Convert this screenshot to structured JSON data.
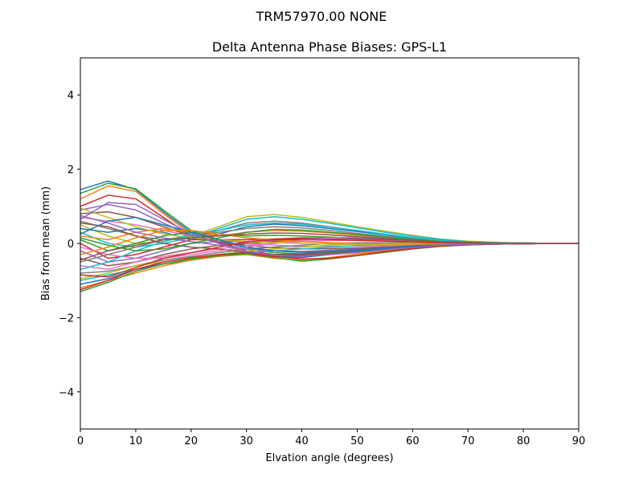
{
  "figure": {
    "suptitle": "TRM57970.00      NONE"
  },
  "chart_data": {
    "type": "line",
    "title": "Delta Antenna Phase Biases: GPS-L1",
    "xlabel": "Elvation angle (degrees)",
    "ylabel": "Bias from mean (mm)",
    "xlim": [
      0,
      90
    ],
    "ylim": [
      -5,
      5
    ],
    "xticks": [
      0,
      10,
      20,
      30,
      40,
      50,
      60,
      70,
      80,
      90
    ],
    "yticks": [
      -4,
      -2,
      0,
      2,
      4
    ],
    "ytick_labels": [
      "−4",
      "−2",
      "0",
      "2",
      "4"
    ],
    "grid": false,
    "legend": "none",
    "colors": [
      "#1f77b4",
      "#ff7f0e",
      "#2ca02c",
      "#d62728",
      "#9467bd",
      "#8c564b",
      "#e377c2",
      "#7f7f7f",
      "#bcbd22",
      "#17becf"
    ],
    "x": [
      0,
      5,
      10,
      15,
      20,
      25,
      30,
      35,
      40,
      45,
      50,
      55,
      60,
      65,
      70,
      75,
      80,
      85,
      90
    ],
    "series": [
      {
        "values": [
          1.45,
          1.68,
          1.45,
          0.85,
          0.3,
          0.05,
          -0.2,
          -0.3,
          -0.3,
          -0.25,
          -0.2,
          -0.15,
          -0.1,
          -0.05,
          -0.03,
          -0.02,
          -0.01,
          0.0,
          0.0
        ]
      },
      {
        "values": [
          1.2,
          1.55,
          1.4,
          0.8,
          0.25,
          0.0,
          -0.25,
          -0.35,
          -0.35,
          -0.3,
          -0.25,
          -0.18,
          -0.12,
          -0.06,
          -0.04,
          -0.02,
          -0.01,
          0.0,
          0.0
        ]
      },
      {
        "values": [
          1.35,
          1.62,
          1.47,
          0.9,
          0.35,
          0.1,
          -0.15,
          -0.25,
          -0.28,
          -0.25,
          -0.2,
          -0.15,
          -0.1,
          -0.05,
          -0.03,
          -0.02,
          -0.01,
          0.0,
          0.0
        ]
      },
      {
        "values": [
          1.0,
          1.3,
          1.2,
          0.7,
          0.2,
          0.02,
          -0.2,
          -0.3,
          -0.32,
          -0.28,
          -0.22,
          -0.16,
          -0.1,
          -0.05,
          -0.03,
          -0.02,
          -0.01,
          0.0,
          0.0
        ]
      },
      {
        "values": [
          0.9,
          1.05,
          0.9,
          0.55,
          0.2,
          0.05,
          -0.1,
          -0.2,
          -0.22,
          -0.2,
          -0.16,
          -0.12,
          -0.08,
          -0.04,
          -0.02,
          -0.01,
          0.0,
          0.0,
          0.0
        ]
      },
      {
        "values": [
          0.8,
          0.85,
          0.7,
          0.45,
          0.2,
          0.05,
          -0.05,
          -0.12,
          -0.15,
          -0.14,
          -0.12,
          -0.09,
          -0.06,
          -0.03,
          -0.02,
          -0.01,
          0.0,
          0.0,
          0.0
        ]
      },
      {
        "values": [
          0.7,
          0.6,
          0.5,
          0.35,
          0.2,
          0.1,
          0.02,
          -0.05,
          -0.08,
          -0.08,
          -0.07,
          -0.06,
          -0.04,
          -0.02,
          -0.01,
          0.0,
          0.0,
          0.0,
          0.0
        ]
      },
      {
        "values": [
          0.6,
          0.4,
          0.2,
          0.1,
          0.15,
          0.35,
          0.55,
          0.6,
          0.55,
          0.45,
          0.35,
          0.25,
          0.16,
          0.08,
          0.04,
          0.02,
          0.01,
          0.0,
          0.0
        ]
      },
      {
        "values": [
          0.5,
          0.2,
          0.0,
          0.05,
          0.2,
          0.45,
          0.72,
          0.78,
          0.7,
          0.58,
          0.45,
          0.33,
          0.22,
          0.12,
          0.06,
          0.03,
          0.01,
          0.0,
          0.0
        ]
      },
      {
        "values": [
          0.3,
          0.0,
          -0.1,
          0.0,
          0.15,
          0.4,
          0.65,
          0.72,
          0.65,
          0.54,
          0.42,
          0.3,
          0.2,
          0.11,
          0.05,
          0.02,
          0.01,
          0.0,
          0.0
        ]
      },
      {
        "values": [
          0.4,
          0.3,
          0.4,
          0.3,
          0.1,
          0.25,
          0.45,
          0.52,
          0.48,
          0.4,
          0.32,
          0.23,
          0.15,
          0.08,
          0.04,
          0.02,
          0.01,
          0.0,
          0.0
        ]
      },
      {
        "values": [
          0.2,
          0.1,
          0.3,
          0.4,
          0.3,
          0.2,
          0.3,
          0.35,
          0.33,
          0.28,
          0.22,
          0.16,
          0.1,
          0.05,
          0.03,
          0.01,
          0.0,
          0.0,
          0.0
        ]
      },
      {
        "values": [
          0.1,
          -0.2,
          0.0,
          0.2,
          0.3,
          0.25,
          0.2,
          0.22,
          0.2,
          0.17,
          0.14,
          0.1,
          0.06,
          0.03,
          0.02,
          0.01,
          0.0,
          0.0,
          0.0
        ]
      },
      {
        "values": [
          0.0,
          -0.4,
          -0.3,
          -0.1,
          0.1,
          0.1,
          0.1,
          0.12,
          0.15,
          0.14,
          0.12,
          0.09,
          0.06,
          0.03,
          0.02,
          0.01,
          0.0,
          0.0,
          0.0
        ]
      },
      {
        "values": [
          -0.2,
          -0.5,
          -0.4,
          -0.2,
          0.0,
          0.05,
          0.05,
          0.08,
          0.12,
          0.15,
          0.14,
          0.11,
          0.07,
          0.04,
          0.02,
          0.01,
          0.0,
          0.0,
          0.0
        ]
      },
      {
        "values": [
          -0.4,
          -0.6,
          -0.5,
          -0.3,
          -0.15,
          -0.05,
          0.0,
          0.05,
          0.1,
          0.13,
          0.12,
          0.1,
          0.07,
          0.04,
          0.02,
          0.01,
          0.0,
          0.0,
          0.0
        ]
      },
      {
        "values": [
          -0.6,
          -0.7,
          -0.5,
          -0.35,
          -0.25,
          -0.15,
          -0.05,
          0.0,
          0.05,
          0.08,
          0.08,
          0.07,
          0.05,
          0.03,
          0.02,
          0.01,
          0.0,
          0.0,
          0.0
        ]
      },
      {
        "values": [
          -0.8,
          -0.75,
          -0.6,
          -0.45,
          -0.35,
          -0.25,
          -0.15,
          -0.1,
          -0.05,
          0.0,
          0.02,
          0.02,
          0.02,
          0.01,
          0.01,
          0.0,
          0.0,
          0.0,
          0.0
        ]
      },
      {
        "values": [
          -0.95,
          -0.8,
          -0.6,
          -0.5,
          -0.4,
          -0.3,
          -0.2,
          -0.15,
          -0.1,
          -0.05,
          -0.02,
          0.0,
          0.01,
          0.01,
          0.0,
          0.0,
          0.0,
          0.0,
          0.0
        ]
      },
      {
        "values": [
          -1.0,
          -0.85,
          -0.7,
          -0.55,
          -0.45,
          -0.35,
          -0.25,
          -0.2,
          -0.15,
          -0.1,
          -0.06,
          -0.03,
          -0.01,
          0.0,
          0.0,
          0.0,
          0.0,
          0.0,
          0.0
        ]
      },
      {
        "values": [
          -1.1,
          -0.95,
          -0.7,
          -0.55,
          -0.45,
          -0.35,
          -0.28,
          -0.35,
          -0.38,
          -0.3,
          -0.22,
          -0.15,
          -0.1,
          -0.05,
          -0.03,
          -0.02,
          -0.01,
          0.0,
          0.0
        ]
      },
      {
        "values": [
          -1.2,
          -1.0,
          -0.8,
          -0.6,
          -0.45,
          -0.35,
          -0.3,
          -0.4,
          -0.45,
          -0.38,
          -0.28,
          -0.2,
          -0.12,
          -0.06,
          -0.03,
          -0.02,
          -0.01,
          0.0,
          0.0
        ]
      },
      {
        "values": [
          -1.3,
          -1.05,
          -0.75,
          -0.55,
          -0.42,
          -0.33,
          -0.28,
          -0.38,
          -0.48,
          -0.42,
          -0.33,
          -0.24,
          -0.15,
          -0.08,
          -0.04,
          -0.02,
          -0.01,
          0.0,
          0.0
        ]
      },
      {
        "values": [
          -1.25,
          -1.0,
          -0.7,
          -0.5,
          -0.38,
          -0.3,
          -0.25,
          -0.35,
          -0.42,
          -0.4,
          -0.32,
          -0.22,
          -0.14,
          -0.07,
          -0.04,
          -0.02,
          -0.01,
          0.0,
          0.0
        ]
      },
      {
        "values": [
          0.75,
          0.55,
          0.3,
          0.15,
          0.05,
          -0.05,
          -0.15,
          -0.2,
          -0.22,
          -0.18,
          -0.14,
          -0.1,
          -0.06,
          -0.03,
          -0.02,
          -0.01,
          0.0,
          0.0,
          0.0
        ]
      },
      {
        "values": [
          0.55,
          0.45,
          0.2,
          0.0,
          -0.1,
          -0.15,
          -0.25,
          -0.3,
          -0.28,
          -0.22,
          -0.16,
          -0.11,
          -0.07,
          -0.03,
          -0.02,
          -0.01,
          0.0,
          0.0,
          0.0
        ]
      },
      {
        "values": [
          -0.1,
          -0.3,
          -0.4,
          -0.4,
          -0.3,
          -0.2,
          -0.1,
          0.0,
          0.08,
          0.14,
          0.18,
          0.15,
          0.1,
          0.05,
          0.03,
          0.01,
          0.0,
          0.0,
          0.0
        ]
      },
      {
        "values": [
          -0.5,
          -0.3,
          -0.1,
          0.1,
          0.2,
          0.3,
          0.4,
          0.45,
          0.42,
          0.35,
          0.27,
          0.19,
          0.12,
          0.06,
          0.03,
          0.02,
          0.01,
          0.0,
          0.0
        ]
      },
      {
        "values": [
          0.95,
          0.7,
          0.45,
          0.25,
          0.15,
          0.1,
          0.05,
          0.02,
          0.0,
          -0.02,
          -0.03,
          -0.03,
          -0.02,
          -0.01,
          -0.01,
          0.0,
          0.0,
          0.0,
          0.0
        ]
      },
      {
        "values": [
          -0.7,
          -0.5,
          -0.2,
          0.05,
          0.25,
          0.35,
          0.5,
          0.55,
          0.52,
          0.44,
          0.35,
          0.25,
          0.16,
          0.08,
          0.04,
          0.02,
          0.01,
          0.0,
          0.0
        ]
      },
      {
        "values": [
          0.25,
          0.6,
          0.7,
          0.5,
          0.3,
          0.1,
          -0.1,
          -0.2,
          -0.24,
          -0.22,
          -0.18,
          -0.13,
          -0.08,
          -0.04,
          -0.02,
          -0.01,
          0.0,
          0.0,
          0.0
        ]
      },
      {
        "values": [
          -0.3,
          -0.1,
          0.15,
          0.35,
          0.35,
          0.25,
          0.15,
          0.1,
          0.05,
          0.02,
          0.0,
          -0.01,
          -0.01,
          0.0,
          0.0,
          0.0,
          0.0,
          0.0,
          0.0
        ]
      },
      {
        "values": [
          0.15,
          -0.05,
          -0.2,
          -0.15,
          0.0,
          0.15,
          0.3,
          0.38,
          0.36,
          0.3,
          0.24,
          0.17,
          0.11,
          0.05,
          0.03,
          0.01,
          0.0,
          0.0,
          0.0
        ]
      },
      {
        "values": [
          -0.85,
          -0.9,
          -0.65,
          -0.4,
          -0.25,
          -0.1,
          0.05,
          0.1,
          0.12,
          0.1,
          0.08,
          0.06,
          0.04,
          0.02,
          0.01,
          0.0,
          0.0,
          0.0,
          0.0
        ]
      },
      {
        "values": [
          0.65,
          1.1,
          1.05,
          0.65,
          0.25,
          0.0,
          -0.22,
          -0.32,
          -0.34,
          -0.3,
          -0.24,
          -0.17,
          -0.11,
          -0.05,
          -0.03,
          -0.01,
          0.0,
          0.0,
          0.0
        ]
      },
      {
        "values": [
          -0.45,
          -0.2,
          -0.05,
          0.1,
          0.15,
          0.2,
          0.25,
          0.28,
          0.27,
          0.23,
          0.18,
          0.13,
          0.08,
          0.04,
          0.02,
          0.01,
          0.0,
          0.0,
          0.0
        ]
      }
    ]
  }
}
